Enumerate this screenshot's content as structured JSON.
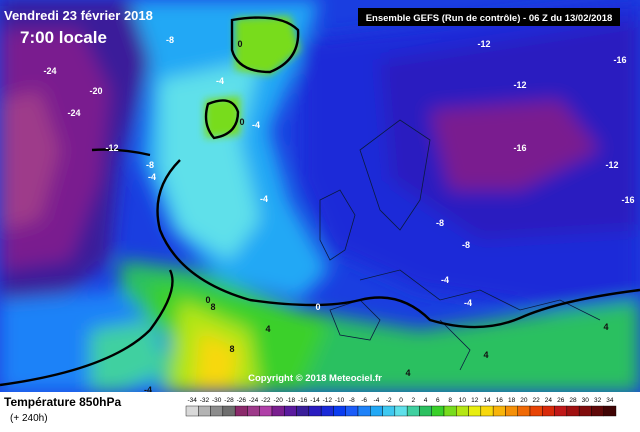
{
  "header": {
    "date": "Vendredi 23 février 2018",
    "time": "7:00 locale",
    "run": "Ensemble GEFS  (Run de contrôle)  -  06 Z du 13/02/2018"
  },
  "copyright": "Copyright © 2018 Meteociel.fr",
  "footer": {
    "variable": "Température 850hPa",
    "lead": "(+ 240h)"
  },
  "contour_labels": [
    -24,
    -24,
    -20,
    -12,
    -8,
    0,
    -4,
    0,
    -4,
    -8,
    -4,
    -4,
    -12,
    -12,
    -16,
    -16,
    -12,
    -16,
    -8,
    -8,
    -4,
    -4,
    0,
    0,
    4,
    8,
    4,
    4,
    4,
    8,
    -4
  ],
  "legend": {
    "values": [
      -34,
      -32,
      -30,
      -28,
      -26,
      -24,
      -22,
      -20,
      -18,
      -16,
      -14,
      -12,
      -10,
      -8,
      -6,
      -4,
      -2,
      0,
      2,
      4,
      6,
      8,
      10,
      12,
      14,
      16,
      18,
      20,
      22,
      24,
      26,
      28,
      30,
      32,
      34
    ],
    "colors": [
      "#d9d9d9",
      "#b3b3b3",
      "#8c8c8c",
      "#6e6e6e",
      "#8b2a6b",
      "#9e3a8a",
      "#b040a8",
      "#7a1f8f",
      "#5a1a9e",
      "#3a1e9a",
      "#2a1cc0",
      "#1a2ad8",
      "#0a3cf0",
      "#1c5cf8",
      "#1f82f8",
      "#22a8f5",
      "#3ec8f0",
      "#5fe0ea",
      "#40d0a0",
      "#2cc060",
      "#3ad02a",
      "#78dc1e",
      "#b4e614",
      "#e8ee10",
      "#f8d80c",
      "#f8b40a",
      "#f59008",
      "#f06a06",
      "#e84406",
      "#d82a0a",
      "#c01818",
      "#a01010",
      "#800c0c",
      "#600808",
      "#400404"
    ]
  }
}
